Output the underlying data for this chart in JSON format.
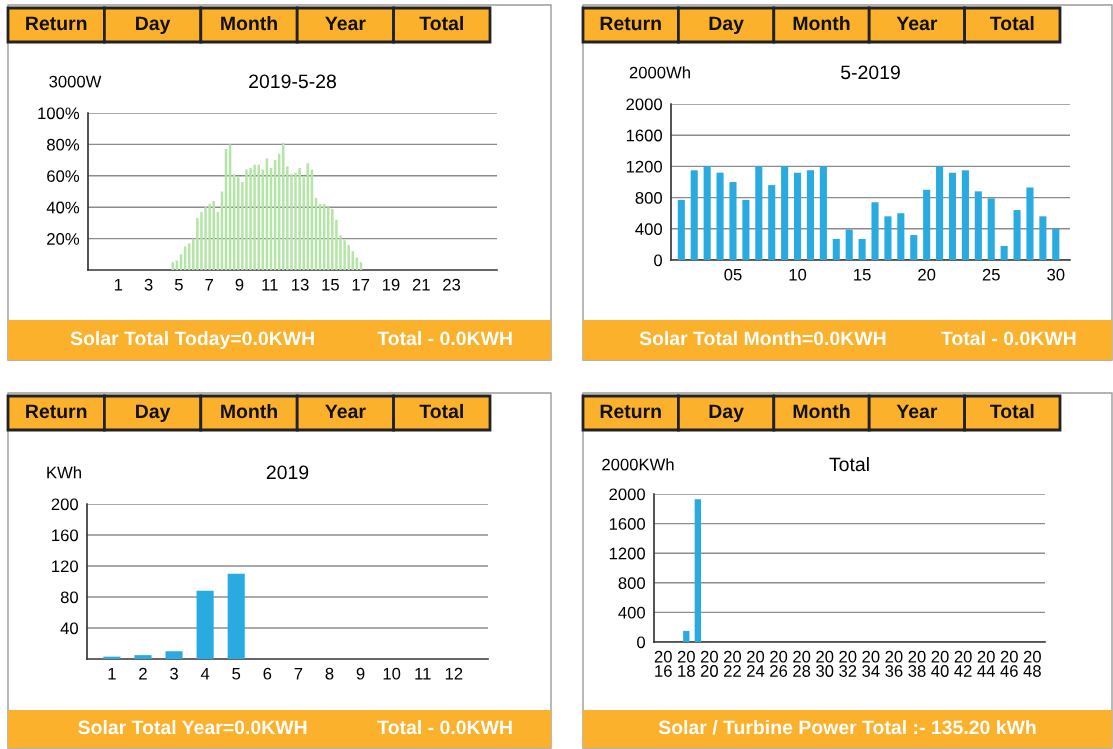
{
  "chart_data": [
    {
      "type": "bar",
      "title": "2019-5-28",
      "ylabel": "3000W",
      "color": "#b3e6a6",
      "x": [
        4.6,
        4.87,
        5.14,
        5.41,
        5.68,
        5.95,
        6.22,
        6.49,
        6.76,
        7.03,
        7.3,
        7.57,
        7.84,
        8.11,
        8.38,
        8.65,
        8.92,
        9.19,
        9.46,
        9.73,
        10.0,
        10.27,
        10.54,
        10.81,
        11.08,
        11.35,
        11.62,
        11.89,
        12.16,
        12.43,
        12.7,
        12.97,
        13.24,
        13.51,
        13.78,
        14.05,
        14.32,
        14.59,
        14.86,
        15.13,
        15.4,
        15.67,
        15.94,
        16.21,
        16.48,
        16.75,
        17.02
      ],
      "values": [
        5,
        6,
        10,
        15,
        17,
        20,
        33,
        37,
        40,
        42,
        44,
        37,
        50,
        77,
        80,
        61,
        59,
        56,
        64,
        65,
        67,
        67,
        64,
        71,
        65,
        70,
        74,
        81,
        66,
        61,
        62,
        65,
        59,
        68,
        64,
        46,
        42,
        42,
        40,
        39,
        32,
        22,
        19,
        16,
        12,
        8,
        5
      ],
      "xlim": [
        -1,
        26
      ],
      "xticks": [
        1,
        3,
        5,
        7,
        9,
        11,
        13,
        15,
        17,
        19,
        21,
        23
      ],
      "ylim": [
        0,
        100
      ],
      "yticks": [
        {
          "value": 20,
          "label": "20%"
        },
        {
          "value": 40,
          "label": "40%"
        },
        {
          "value": 60,
          "label": "60%"
        },
        {
          "value": 80,
          "label": "80%"
        },
        {
          "value": 100,
          "label": "100%"
        }
      ],
      "grid": "y",
      "annotations": [
        "Return",
        "Day",
        "Month",
        "Year",
        "Total",
        "Solar Total Today=0.0KWH",
        "Total - 0.0KWH"
      ]
    },
    {
      "type": "bar",
      "title": "5-2019",
      "ylabel": "2000Wh",
      "color": "#29abe2",
      "categories": [
        null,
        null,
        null,
        null,
        "05",
        null,
        null,
        null,
        null,
        "10",
        null,
        null,
        null,
        null,
        "15",
        null,
        null,
        null,
        null,
        "20",
        null,
        null,
        null,
        null,
        "25",
        null,
        null,
        null,
        null,
        "30"
      ],
      "values": [
        770,
        1150,
        1200,
        1120,
        1000,
        770,
        1200,
        960,
        1200,
        1120,
        1150,
        1200,
        270,
        390,
        270,
        740,
        560,
        600,
        320,
        900,
        1200,
        1120,
        1150,
        880,
        790,
        180,
        640,
        930,
        560,
        400
      ],
      "ylim": [
        0,
        2000
      ],
      "yticks": [
        0,
        400,
        800,
        1200,
        1600,
        2000
      ],
      "grid": "y",
      "annotations": [
        "Return",
        "Day",
        "Month",
        "Year",
        "Total",
        "Solar Total Month=0.0KWH",
        "Total - 0.0KWH"
      ]
    },
    {
      "type": "bar",
      "title": "2019",
      "ylabel": "KWh",
      "color": "#29abe2",
      "categories": [
        "1",
        "2",
        "3",
        "4",
        "5",
        "6",
        "7",
        "8",
        "9",
        "10",
        "11",
        "12"
      ],
      "values": [
        3,
        5,
        10,
        88,
        110,
        null,
        null,
        null,
        null,
        null,
        null,
        null
      ],
      "ylim": [
        0,
        200
      ],
      "yticks": [
        40,
        80,
        120,
        160,
        200
      ],
      "grid": "y",
      "annotations": [
        "Return",
        "Day",
        "Month",
        "Year",
        "Total",
        "Solar Total Year=0.0KWH",
        "Total - 0.0KWH"
      ]
    },
    {
      "type": "bar",
      "title": "Total",
      "ylabel": "2000KWh",
      "color": "#29abe2",
      "categories": [
        "20\n16",
        null,
        "20\n18",
        null,
        "20\n20",
        null,
        "20\n22",
        null,
        "20\n24",
        null,
        "20\n26",
        null,
        "20\n28",
        null,
        "20\n30",
        null,
        "20\n32",
        null,
        "20\n34",
        null,
        "20\n36",
        null,
        "20\n38",
        null,
        "20\n40",
        null,
        "20\n42",
        null,
        "20\n44",
        null,
        "20\n46",
        null,
        "20\n48"
      ],
      "values": [
        null,
        null,
        150,
        1930,
        null,
        null,
        null,
        null,
        null,
        null,
        null,
        null,
        null,
        null,
        null,
        null,
        null,
        null,
        null,
        null,
        null,
        null,
        null,
        null,
        null,
        null,
        null,
        null,
        null,
        null,
        null,
        null,
        null
      ],
      "ylim": [
        0,
        2000
      ],
      "yticks": [
        0,
        400,
        800,
        1200,
        1600,
        2000
      ],
      "grid": "y",
      "annotations": [
        "Return",
        "Day",
        "Month",
        "Year",
        "Total",
        "Solar / Turbine Power Total :- 135.20 kWh"
      ]
    }
  ]
}
